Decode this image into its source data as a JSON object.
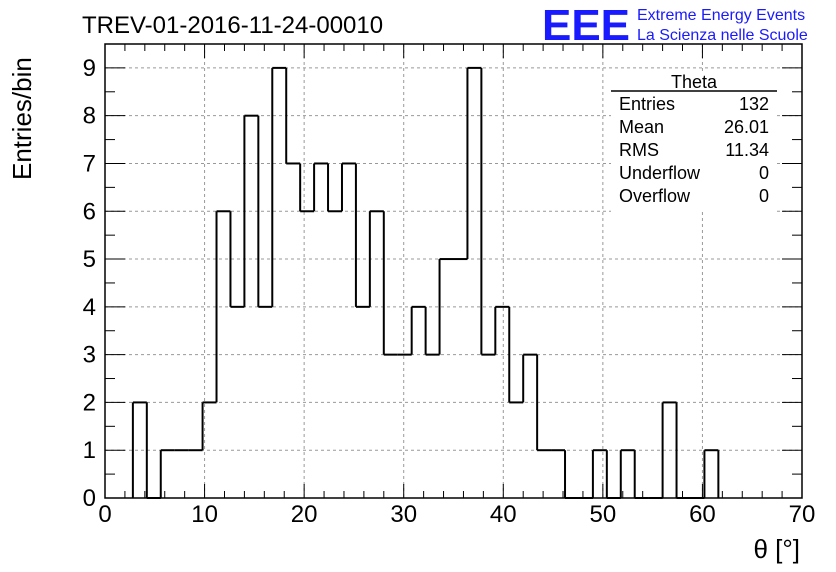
{
  "chart_data": {
    "type": "bar",
    "title": "TREV-01-2016-11-24-00010",
    "xlabel": "θ [°]",
    "ylabel": "Entries/bin",
    "xlim": [
      0,
      70
    ],
    "ylim": [
      0,
      9.5
    ],
    "x_ticks": [
      0,
      10,
      20,
      30,
      40,
      50,
      60,
      70
    ],
    "y_ticks": [
      0,
      1,
      2,
      3,
      4,
      5,
      6,
      7,
      8,
      9
    ],
    "grid": true,
    "bin_edges": [
      2.8,
      4.2,
      5.6,
      7.0,
      8.4,
      9.8,
      11.2,
      12.6,
      14.0,
      15.4,
      16.8,
      18.2,
      19.6,
      21.0,
      22.4,
      23.8,
      25.2,
      26.6,
      28.0,
      29.4,
      30.8,
      32.2,
      33.6,
      35.0,
      36.4,
      37.8,
      39.2,
      40.6,
      42.0,
      43.4,
      44.8,
      46.2,
      47.6,
      49.0,
      50.4,
      51.8,
      53.2,
      54.6,
      56.0,
      57.4,
      58.8,
      60.2,
      61.6
    ],
    "values": [
      2,
      0,
      1,
      1,
      1,
      2,
      6,
      4,
      8,
      4,
      9,
      7,
      6,
      7,
      6,
      7,
      4,
      6,
      3,
      3,
      4,
      3,
      5,
      5,
      9,
      3,
      4,
      2,
      3,
      1,
      1,
      0,
      0,
      1,
      0,
      1,
      0,
      0,
      2,
      0,
      0,
      1
    ],
    "stats_box": {
      "title": "Theta",
      "rows": [
        {
          "label": "Entries",
          "value": "132"
        },
        {
          "label": "Mean",
          "value": "26.01"
        },
        {
          "label": "RMS",
          "value": "11.34"
        },
        {
          "label": "Underflow",
          "value": "0"
        },
        {
          "label": "Overflow",
          "value": "0"
        }
      ]
    }
  },
  "logo": {
    "mark": "EEE",
    "line1": "Extreme Energy Events",
    "line2": "La Scienza nelle Scuole",
    "color": "#1a1aff"
  }
}
